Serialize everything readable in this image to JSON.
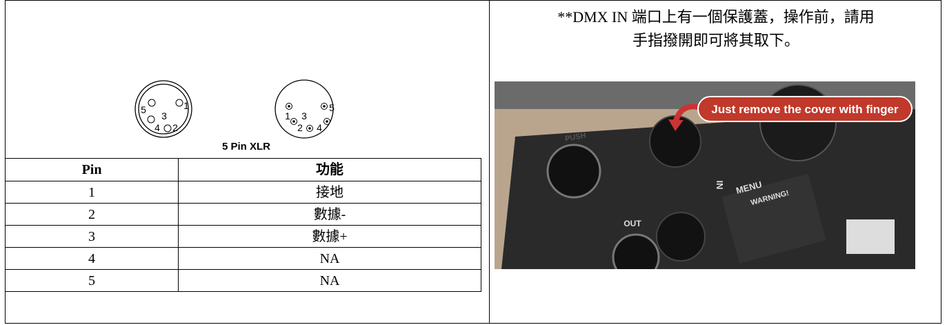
{
  "left": {
    "diagram": {
      "caption": "5 Pin XLR",
      "left_pins": [
        "5",
        "1",
        "3",
        "4",
        "2"
      ],
      "right_pins": [
        "1",
        "3",
        "5",
        "2",
        "4"
      ]
    },
    "table": {
      "header": [
        "Pin",
        "功能"
      ],
      "rows": [
        [
          "1",
          "接地"
        ],
        [
          "2",
          "數據-"
        ],
        [
          "3",
          "數據+"
        ],
        [
          "4",
          "NA"
        ],
        [
          "5",
          "NA"
        ]
      ]
    }
  },
  "right": {
    "note_lines": [
      "**DMX IN 端口上有一個保護蓋，操作前，請用",
      "手指撥開即可將其取下。"
    ],
    "photo": {
      "callout": "Just remove the cover with finger",
      "labels": [
        "PUSH",
        "MENU",
        "WARNING!",
        "IN",
        "OUT"
      ]
    }
  }
}
